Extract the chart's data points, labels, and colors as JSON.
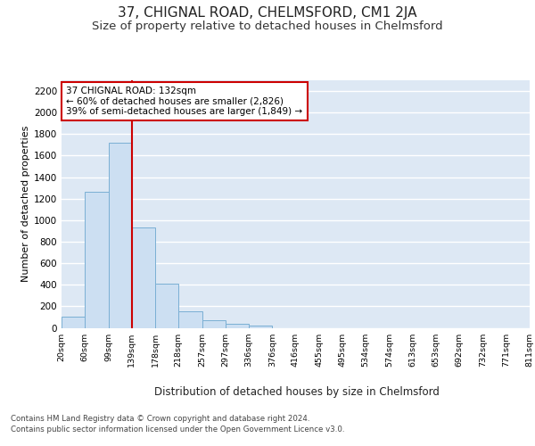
{
  "title": "37, CHIGNAL ROAD, CHELMSFORD, CM1 2JA",
  "subtitle": "Size of property relative to detached houses in Chelmsford",
  "xlabel_bottom": "Distribution of detached houses by size in Chelmsford",
  "ylabel": "Number of detached properties",
  "footer_line1": "Contains HM Land Registry data © Crown copyright and database right 2024.",
  "footer_line2": "Contains public sector information licensed under the Open Government Licence v3.0.",
  "bin_labels": [
    "20sqm",
    "60sqm",
    "99sqm",
    "139sqm",
    "178sqm",
    "218sqm",
    "257sqm",
    "297sqm",
    "336sqm",
    "376sqm",
    "416sqm",
    "455sqm",
    "495sqm",
    "534sqm",
    "574sqm",
    "613sqm",
    "653sqm",
    "692sqm",
    "732sqm",
    "771sqm",
    "811sqm"
  ],
  "bar_values": [
    107,
    1265,
    1720,
    935,
    410,
    152,
    68,
    38,
    22,
    0,
    0,
    0,
    0,
    0,
    0,
    0,
    0,
    0,
    0,
    0
  ],
  "bar_color": "#ccdff2",
  "bar_edge_color": "#7aafd4",
  "vline_color": "#cc0000",
  "annotation_text": "37 CHIGNAL ROAD: 132sqm\n← 60% of detached houses are smaller (2,826)\n39% of semi-detached houses are larger (1,849) →",
  "annotation_box_color": "#cc0000",
  "annotation_text_color": "#000000",
  "annotation_bg_color": "#ffffff",
  "ylim": [
    0,
    2300
  ],
  "yticks": [
    0,
    200,
    400,
    600,
    800,
    1000,
    1200,
    1400,
    1600,
    1800,
    2000,
    2200
  ],
  "plot_bg_color": "#dde8f4",
  "grid_color": "#ffffff",
  "title_fontsize": 11,
  "subtitle_fontsize": 9.5
}
